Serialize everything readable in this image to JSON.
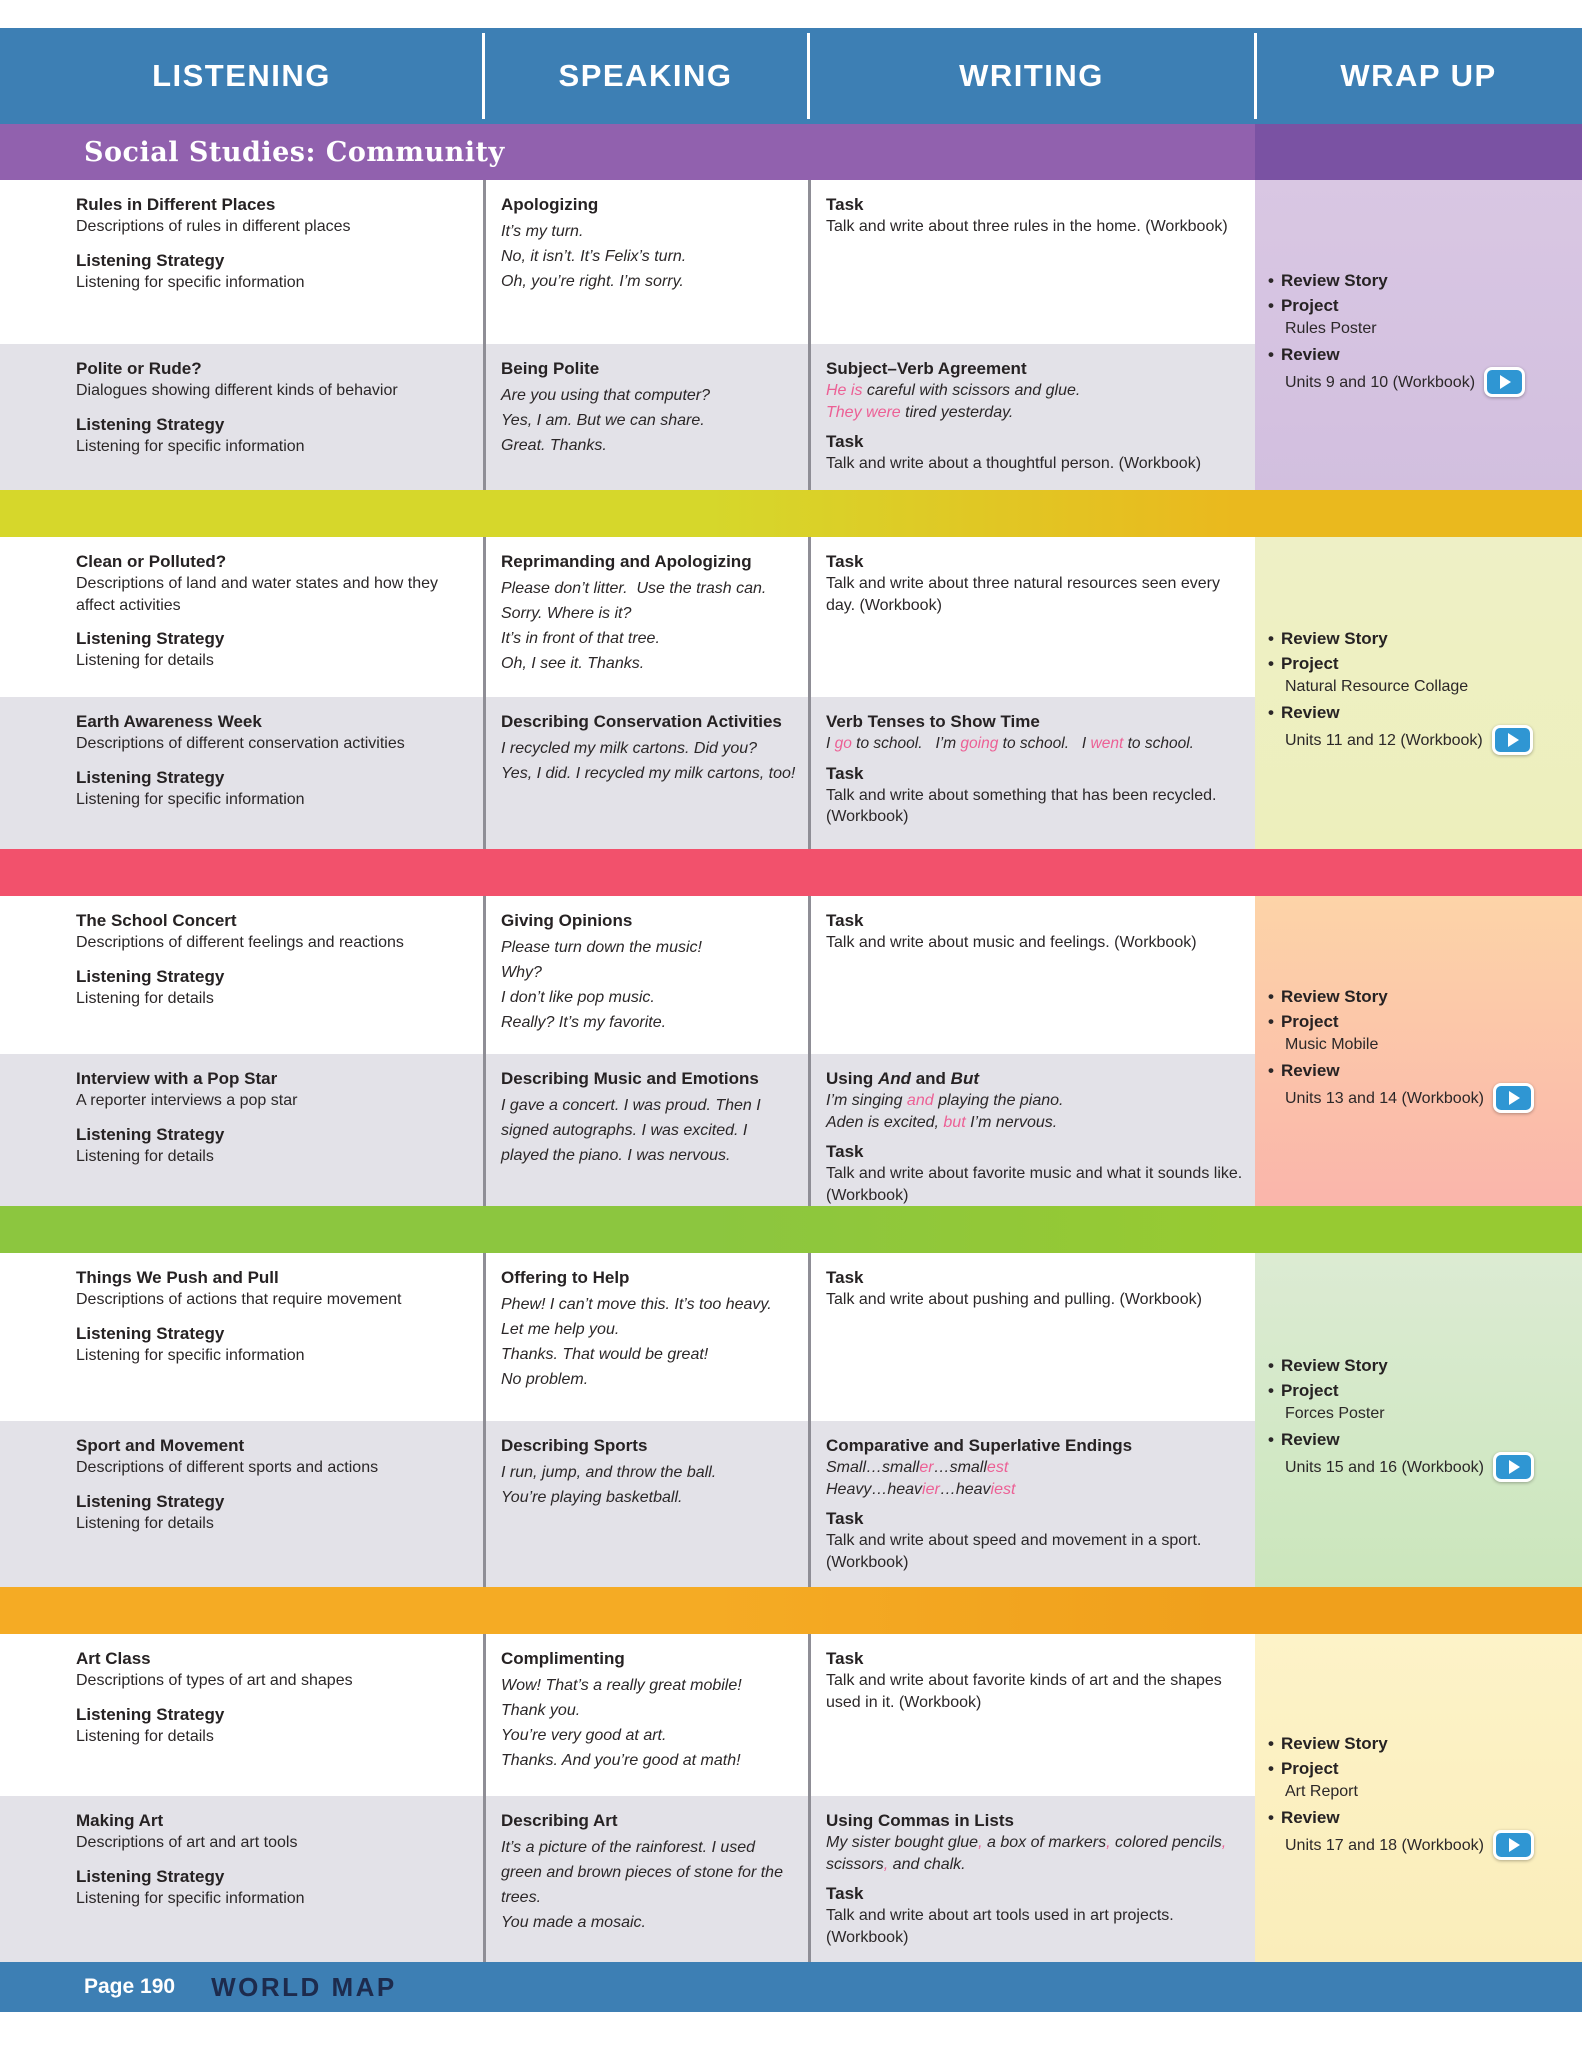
{
  "header": {
    "columns": [
      "LISTENING",
      "SPEAKING",
      "WRITING",
      "WRAP UP"
    ]
  },
  "banner": {
    "title": "Social Studies: Community"
  },
  "labels": {
    "listening_strategy": "Listening Strategy"
  },
  "footer": {
    "page_label": "Page 190",
    "map_label": "WORLD MAP"
  },
  "colors": {
    "header_blue": "#3d7fb4",
    "banner_purple": "#9161ae",
    "banner_purple_dark": "#7a52a3",
    "row_gray": "#e3e2e8",
    "divider_gray": "#8f8e96",
    "highlight_pink": "#ec6095",
    "play_button_blue": "#2f96d3",
    "world_map_text": "#1d2b4d",
    "text_dark": "#262223"
  },
  "sections": [
    {
      "band": null,
      "wrap": {
        "bg_top": "#d9c7e3",
        "bg_bottom": "#d2bfdf",
        "items": [
          {
            "label": "Review Story"
          },
          {
            "label": "Project",
            "sub": "Rules Poster"
          },
          {
            "label": "Review",
            "sub": "Units 9 and 10 (Workbook)",
            "play": true
          }
        ]
      },
      "rows": [
        {
          "listening": {
            "title": "Rules in Different Places",
            "desc": "Descriptions of rules in different places",
            "strategy": "Listening for specific information"
          },
          "speaking": {
            "title": "Apologizing",
            "lines": [
              "It’s my turn.",
              "No, it isn’t. It’s Felix’s turn.",
              "Oh, you’re right. I’m sorry."
            ]
          },
          "writing": {
            "blocks": [
              {
                "title": "Task",
                "italic": false,
                "lines": [
                  "Talk and write about three rules in the home. (Workbook)"
                ]
              }
            ]
          }
        },
        {
          "listening": {
            "title": "Polite or Rude?",
            "desc": "Dialogues showing different kinds of behavior",
            "strategy": "Listening for specific information"
          },
          "speaking": {
            "title": "Being Polite",
            "lines": [
              "Are you using that computer?",
              "Yes, I am. But we can share.",
              "Great. Thanks."
            ]
          },
          "writing": {
            "blocks": [
              {
                "title": "Subject–Verb Agreement",
                "italic": true,
                "lines": [
                  {
                    "segs": [
                      {
                        "t": "He is",
                        "pink": true
                      },
                      {
                        "t": " careful with scissors and glue."
                      }
                    ]
                  },
                  {
                    "segs": [
                      {
                        "t": "They were",
                        "pink": true
                      },
                      {
                        "t": " tired yesterday."
                      }
                    ]
                  }
                ]
              },
              {
                "title": "Task",
                "italic": false,
                "lines": [
                  "Talk and write about a thoughtful person. (Workbook)"
                ]
              }
            ]
          }
        }
      ]
    },
    {
      "band": {
        "from": "#d6d72b",
        "to": "#eab91e"
      },
      "wrap": {
        "bg_top": "#eef0c6",
        "bg_bottom": "#edefbc",
        "items": [
          {
            "label": "Review Story"
          },
          {
            "label": "Project",
            "sub": "Natural Resource Collage"
          },
          {
            "label": "Review",
            "sub": "Units 11 and 12 (Workbook)",
            "play": true
          }
        ]
      },
      "rows": [
        {
          "listening": {
            "title": "Clean or Polluted?",
            "desc": "Descriptions of land and water states and how they affect activities",
            "strategy": "Listening for details"
          },
          "speaking": {
            "title": "Reprimanding and Apologizing",
            "lines": [
              "Please don’t litter.  Use the trash can.",
              "Sorry. Where is it?",
              "It’s in front of that tree.",
              "Oh, I see it. Thanks."
            ]
          },
          "writing": {
            "blocks": [
              {
                "title": "Task",
                "italic": false,
                "lines": [
                  "Talk and write about three natural resources seen every day. (Workbook)"
                ]
              }
            ]
          }
        },
        {
          "listening": {
            "title": "Earth Awareness Week",
            "desc": "Descriptions of different conservation activities",
            "strategy": "Listening for specific information"
          },
          "speaking": {
            "title": "Describing Conservation Activities",
            "lines": [
              "I recycled my milk cartons. Did you?",
              "Yes, I did. I recycled my milk cartons, too!"
            ]
          },
          "writing": {
            "blocks": [
              {
                "title": "Verb Tenses to Show Time",
                "italic": true,
                "lines": [
                  {
                    "nowrap": true,
                    "segs": [
                      {
                        "t": "I "
                      },
                      {
                        "t": "go",
                        "pink": true
                      },
                      {
                        "t": " to school.   I’m "
                      },
                      {
                        "t": "going",
                        "pink": true
                      },
                      {
                        "t": " to school.   I "
                      },
                      {
                        "t": "went",
                        "pink": true
                      },
                      {
                        "t": " to school."
                      }
                    ]
                  }
                ]
              },
              {
                "title": "Task",
                "italic": false,
                "lines": [
                  "Talk and write about something that has been recycled. (Workbook)"
                ]
              }
            ]
          }
        }
      ]
    },
    {
      "band": {
        "from": "#f2516c",
        "to": "#f2516c"
      },
      "wrap": {
        "bg_top": "#fdd4a8",
        "bg_bottom": "#fab5ab",
        "items": [
          {
            "label": "Review Story"
          },
          {
            "label": "Project",
            "sub": "Music Mobile"
          },
          {
            "label": "Review",
            "sub": "Units 13 and 14 (Workbook)",
            "play": true
          }
        ]
      },
      "rows": [
        {
          "listening": {
            "title": "The School Concert",
            "desc": "Descriptions of different feelings and reactions",
            "strategy": "Listening for details"
          },
          "speaking": {
            "title": "Giving Opinions",
            "lines": [
              "Please turn down the music!",
              "Why?",
              "I don’t like pop music.",
              "Really? It’s my favorite."
            ]
          },
          "writing": {
            "blocks": [
              {
                "title": "Task",
                "italic": false,
                "lines": [
                  "Talk and write about music and feelings. (Workbook)"
                ]
              }
            ]
          }
        },
        {
          "listening": {
            "title": "Interview with a Pop Star",
            "desc": "A reporter interviews a pop star",
            "strategy": "Listening for details"
          },
          "speaking": {
            "title": "Describing Music and Emotions",
            "lines": [
              "I gave a concert. I was proud. Then I signed autographs. I was excited. I played the piano. I was nervous."
            ]
          },
          "writing": {
            "blocks": [
              {
                "title_segs": [
                  {
                    "t": "Using "
                  },
                  {
                    "t": "And",
                    "i": true
                  },
                  {
                    "t": " and "
                  },
                  {
                    "t": "But",
                    "i": true
                  }
                ],
                "italic": true,
                "lines": [
                  {
                    "segs": [
                      {
                        "t": "I’m singing "
                      },
                      {
                        "t": "and",
                        "pink": true
                      },
                      {
                        "t": " playing the piano."
                      }
                    ]
                  },
                  {
                    "segs": [
                      {
                        "t": "Aden is excited, "
                      },
                      {
                        "t": "but",
                        "pink": true
                      },
                      {
                        "t": " I’m nervous."
                      }
                    ]
                  }
                ]
              },
              {
                "title": "Task",
                "italic": false,
                "lines": [
                  "Talk and write about favorite music and what it sounds like. (Workbook)"
                ]
              }
            ]
          }
        }
      ]
    },
    {
      "band": {
        "from": "#8cc63f",
        "to": "#97ca32"
      },
      "wrap": {
        "bg_top": "#dcebd3",
        "bg_bottom": "#cbe6bc",
        "items": [
          {
            "label": "Review Story"
          },
          {
            "label": "Project",
            "sub": "Forces Poster"
          },
          {
            "label": "Review",
            "sub": "Units 15 and 16 (Workbook)",
            "play": true
          }
        ]
      },
      "rows": [
        {
          "listening": {
            "title": "Things We Push and Pull",
            "desc": "Descriptions of actions that require movement",
            "strategy": "Listening for specific information"
          },
          "speaking": {
            "title": "Offering to Help",
            "lines": [
              "Phew! I can’t move this. It’s too heavy.",
              "Let me help you.",
              "Thanks. That would be great!",
              "No problem."
            ]
          },
          "writing": {
            "blocks": [
              {
                "title": "Task",
                "italic": false,
                "lines": [
                  "Talk and write about pushing and pulling. (Workbook)"
                ]
              }
            ]
          }
        },
        {
          "listening": {
            "title": "Sport and Movement",
            "desc": "Descriptions of different sports and actions",
            "strategy": "Listening for details"
          },
          "speaking": {
            "title": "Describing Sports",
            "lines": [
              "I run, jump, and throw the ball.",
              "You’re playing basketball."
            ]
          },
          "writing": {
            "blocks": [
              {
                "title": "Comparative and Superlative Endings",
                "italic": true,
                "lines": [
                  {
                    "segs": [
                      {
                        "t": "Small…small"
                      },
                      {
                        "t": "er",
                        "pink": true
                      },
                      {
                        "t": "…small"
                      },
                      {
                        "t": "est",
                        "pink": true
                      }
                    ]
                  },
                  {
                    "segs": [
                      {
                        "t": "Heavy…heav"
                      },
                      {
                        "t": "ier",
                        "pink": true
                      },
                      {
                        "t": "…heav"
                      },
                      {
                        "t": "iest",
                        "pink": true
                      }
                    ]
                  }
                ]
              },
              {
                "title": "Task",
                "italic": false,
                "lines": [
                  "Talk and write about speed and movement in a sport. (Workbook)"
                ]
              }
            ]
          }
        }
      ]
    },
    {
      "band": {
        "from": "#f5ab24",
        "to": "#f0a01c"
      },
      "wrap": {
        "bg_top": "#fdf3c8",
        "bg_bottom": "#faedba",
        "items": [
          {
            "label": "Review Story"
          },
          {
            "label": "Project",
            "sub": "Art Report"
          },
          {
            "label": "Review",
            "sub": "Units 17 and 18 (Workbook)",
            "play": true
          }
        ]
      },
      "rows": [
        {
          "listening": {
            "title": "Art Class",
            "desc": "Descriptions of types of art and shapes",
            "strategy": "Listening for details"
          },
          "speaking": {
            "title": "Complimenting",
            "lines": [
              "Wow! That’s a really great mobile!",
              "Thank you.",
              "You’re very good at art.",
              "Thanks. And you’re good at math!"
            ]
          },
          "writing": {
            "blocks": [
              {
                "title": "Task",
                "italic": false,
                "lines": [
                  "Talk and write about favorite kinds of art and the shapes used in it. (Workbook)"
                ]
              }
            ]
          }
        },
        {
          "listening": {
            "title": "Making Art",
            "desc": "Descriptions of art and art tools",
            "strategy": "Listening for specific information"
          },
          "speaking": {
            "title": "Describing Art",
            "lines": [
              "It’s a picture of the rainforest. I used green and brown pieces of stone for the trees.",
              "You made a mosaic."
            ]
          },
          "writing": {
            "blocks": [
              {
                "title": "Using Commas in Lists",
                "italic": true,
                "lines": [
                  {
                    "segs": [
                      {
                        "t": "My sister bought glue"
                      },
                      {
                        "t": ",",
                        "pink": true
                      },
                      {
                        "t": " a box of markers"
                      },
                      {
                        "t": ",",
                        "pink": true
                      },
                      {
                        "t": " colored pencils"
                      },
                      {
                        "t": ",",
                        "pink": true
                      },
                      {
                        "t": " scissors"
                      },
                      {
                        "t": ",",
                        "pink": true
                      },
                      {
                        "t": " and chalk."
                      }
                    ]
                  }
                ]
              },
              {
                "title": "Task",
                "italic": false,
                "lines": [
                  "Talk and write about art tools used in art projects. (Workbook)"
                ]
              }
            ]
          }
        }
      ]
    }
  ]
}
